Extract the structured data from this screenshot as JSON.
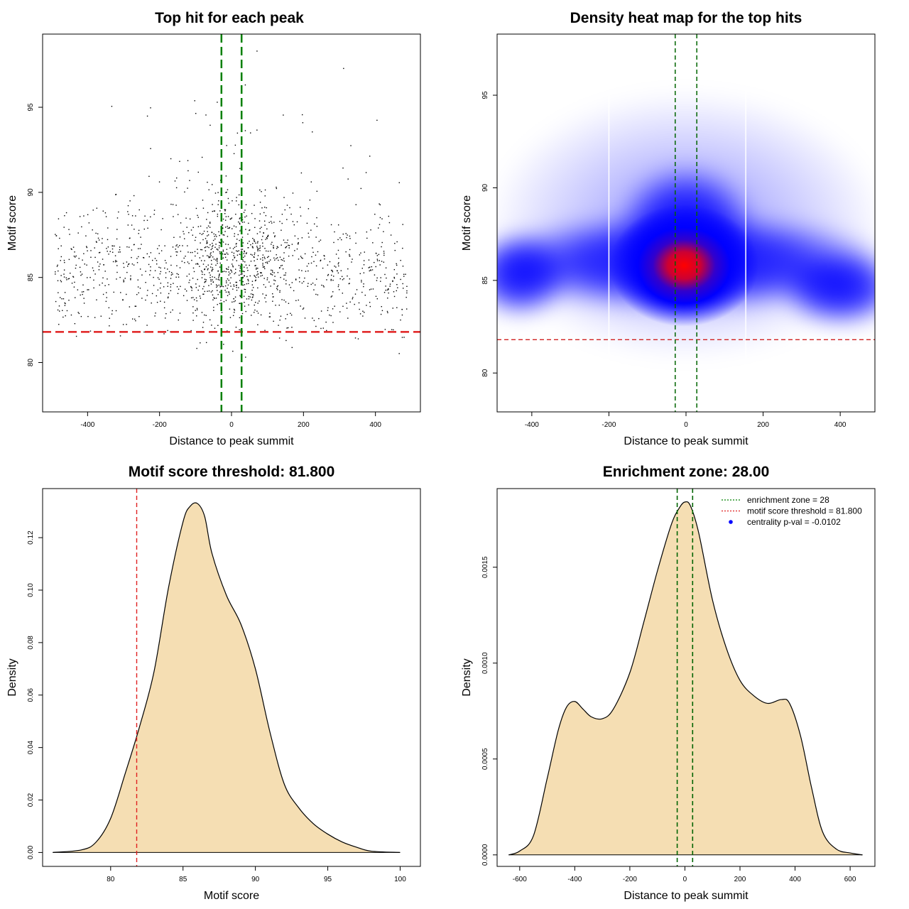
{
  "chart_data": [
    {
      "type": "scatter",
      "title": "Top hit for each peak",
      "xlabel": "Distance to peak summit",
      "ylabel": "Motif score",
      "xlim": [
        -525,
        525
      ],
      "ylim": [
        77.1,
        99.3
      ],
      "xticks": [
        -400,
        -200,
        0,
        200,
        400
      ],
      "yticks": [
        80,
        85,
        90,
        95
      ],
      "enrichment_zone": 28,
      "threshold": 81.8,
      "points_description": "about 1500 motif hits spanning distance -500 to 500 and scores 78 to 98, densest around distance 0 and score 85",
      "n_points": 1500,
      "colors": {
        "points": "#000000",
        "threshold_line": "#e02020",
        "zone_lines": "#008000"
      }
    },
    {
      "type": "heatmap",
      "title": "Density heat map for the top hits",
      "xlabel": "Distance to peak summit",
      "ylabel": "Motif score",
      "xlim": [
        -490,
        490
      ],
      "ylim": [
        77.9,
        98.3
      ],
      "xticks": [
        -400,
        -200,
        0,
        200,
        400
      ],
      "yticks": [
        80,
        85,
        90,
        95
      ],
      "enrichment_zone": 28,
      "threshold": 81.8,
      "white_vlines": [
        -200,
        155
      ],
      "density_peak": {
        "x": -5,
        "y": 86
      },
      "palette": [
        "#ffffff",
        "#0000ff",
        "#ff0000"
      ]
    },
    {
      "type": "area",
      "title": "Motif score threshold: 81.800",
      "xlabel": "Motif score",
      "ylabel": "Density",
      "xlim": [
        75.3,
        101.4
      ],
      "ylim": [
        -0.0053,
        0.1387
      ],
      "xticks": [
        80,
        85,
        90,
        95,
        100
      ],
      "yticks": [
        0.0,
        0.02,
        0.04,
        0.06,
        0.08,
        0.1,
        0.12
      ],
      "ytick_labels": [
        "0.00",
        "0.02",
        "0.04",
        "0.06",
        "0.08",
        "0.10",
        "0.12"
      ],
      "threshold": 81.8,
      "x": [
        76,
        78,
        79,
        80,
        81,
        82,
        83,
        84,
        85,
        85.5,
        86,
        86.5,
        87,
        88,
        89,
        90,
        91,
        92,
        93,
        94,
        95,
        96,
        97,
        98,
        100
      ],
      "y": [
        0.0,
        0.001,
        0.004,
        0.013,
        0.03,
        0.048,
        0.069,
        0.101,
        0.126,
        0.132,
        0.133,
        0.128,
        0.114,
        0.098,
        0.087,
        0.07,
        0.046,
        0.026,
        0.017,
        0.011,
        0.007,
        0.004,
        0.002,
        0.0005,
        0.0
      ],
      "colors": {
        "fill": "#f5deb3",
        "line": "#000000",
        "threshold_line": "#e02020"
      }
    },
    {
      "type": "area",
      "title": "Enrichment zone: 28.00",
      "xlabel": "Distance to peak summit",
      "ylabel": "Density",
      "xlim": [
        -682,
        690
      ],
      "ylim": [
        -6e-05,
        0.00191
      ],
      "xticks": [
        -600,
        -400,
        -200,
        0,
        200,
        400,
        600
      ],
      "yticks": [
        0.0,
        0.0005,
        0.001,
        0.0015
      ],
      "ytick_labels": [
        "0.0000",
        "0.0005",
        "0.0010",
        "0.0015"
      ],
      "enrichment_zone": 28,
      "x": [
        -640,
        -600,
        -550,
        -500,
        -460,
        -430,
        -400,
        -370,
        -340,
        -300,
        -260,
        -200,
        -150,
        -100,
        -50,
        -20,
        0,
        20,
        50,
        100,
        150,
        200,
        250,
        300,
        350,
        380,
        420,
        460,
        500,
        550,
        600,
        645
      ],
      "y": [
        0.0,
        2e-05,
        0.0001,
        0.0004,
        0.00065,
        0.00077,
        0.0008,
        0.00076,
        0.00072,
        0.00071,
        0.00076,
        0.00095,
        0.00121,
        0.00148,
        0.00172,
        0.00181,
        0.00184,
        0.00182,
        0.00168,
        0.00133,
        0.00108,
        0.00091,
        0.00083,
        0.00079,
        0.00081,
        0.00079,
        0.00062,
        0.00035,
        0.00012,
        3e-05,
        1e-05,
        0.0
      ],
      "legend": [
        {
          "label": "enrichment zone = 28",
          "color": "#008000",
          "style": "dotted-line"
        },
        {
          "label": "motif score threshold = 81.800",
          "color": "#e02020",
          "style": "dotted-line"
        },
        {
          "label": "centrality p-val = -0.0102",
          "color": "#0000ff",
          "style": "point"
        }
      ],
      "legend_position": "top-right",
      "colors": {
        "fill": "#f5deb3",
        "line": "#000000",
        "zone_lines": "#006400"
      }
    }
  ]
}
